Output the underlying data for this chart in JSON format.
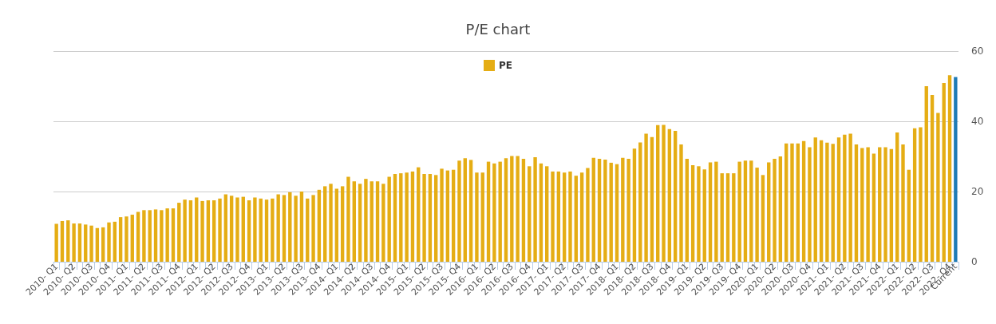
{
  "chart_data": {
    "type": "bar",
    "title": "P/E chart",
    "categories": [
      "2010- Q1",
      null,
      null,
      "2010- Q2",
      null,
      null,
      "2010- Q3",
      null,
      null,
      "2010- Q4",
      null,
      null,
      "2011- Q1",
      null,
      null,
      "2011- Q2",
      null,
      null,
      "2011- Q3",
      null,
      null,
      "2011- Q4",
      null,
      null,
      "2012- Q1",
      null,
      null,
      "2012- Q2",
      null,
      null,
      "2012- Q3",
      null,
      null,
      "2012- Q4",
      null,
      null,
      "2013- Q1",
      null,
      null,
      "2013- Q2",
      null,
      null,
      "2013- Q3",
      null,
      null,
      "2013- Q4",
      null,
      null,
      "2014- Q1",
      null,
      null,
      "2014- Q2",
      null,
      null,
      "2014- Q3",
      null,
      null,
      "2014- Q4",
      null,
      null,
      "2015- Q1",
      null,
      null,
      "2015- Q2",
      null,
      null,
      "2015- Q3",
      null,
      null,
      "2015- Q4",
      null,
      null,
      "2016- Q1",
      null,
      null,
      "2016- Q2",
      null,
      null,
      "2016- Q3",
      null,
      null,
      "2016- Q4",
      null,
      null,
      "2017- Q1",
      null,
      null,
      "2017- Q2",
      null,
      null,
      "2017- Q3",
      null,
      null,
      "2017- Q4",
      null,
      null,
      "2018- Q1",
      null,
      null,
      "2018- Q2",
      null,
      null,
      "2018- Q3",
      null,
      null,
      "2018- Q4",
      null,
      null,
      "2019- Q1",
      null,
      null,
      "2019- Q2",
      null,
      null,
      "2019- Q3",
      null,
      null,
      "2019- Q4",
      null,
      null,
      "2020- Q1",
      null,
      null,
      "2020- Q2",
      null,
      null,
      "2020- Q3",
      null,
      null,
      "2020- Q4",
      null,
      null,
      "2021- Q1",
      null,
      null,
      "2021- Q2",
      null,
      null,
      "2021- Q3",
      null,
      null,
      "2021- Q4",
      null,
      null,
      "2022- Q1",
      null,
      null,
      "2022- Q2",
      null,
      null,
      "2022- Q3",
      null,
      null,
      "2022- Q4",
      "Current"
    ],
    "series": [
      {
        "name": "PE",
        "color": "#e5ad14",
        "values": [
          10.8,
          11.6,
          11.8,
          10.9,
          10.9,
          10.6,
          10.3,
          9.6,
          9.8,
          11.2,
          11.4,
          12.7,
          12.9,
          13.4,
          14.2,
          14.7,
          14.7,
          14.9,
          14.7,
          15.2,
          15.2,
          16.8,
          17.7,
          17.5,
          18.3,
          17.3,
          17.5,
          17.5,
          18.0,
          19.2,
          18.8,
          18.3,
          18.5,
          17.5,
          18.3,
          18.0,
          17.7,
          18.0,
          19.2,
          19.0,
          19.8,
          18.8,
          20.0,
          18.0,
          19.0,
          20.5,
          21.5,
          22.2,
          20.8,
          21.5,
          24.2,
          22.9,
          22.2,
          23.6,
          22.9,
          22.9,
          22.2,
          24.2,
          25.0,
          25.2,
          25.4,
          25.7,
          26.9,
          25.0,
          25.0,
          24.7,
          26.5,
          26.0,
          26.2,
          28.8,
          29.5,
          29.0,
          25.4,
          25.4,
          28.5,
          28.0,
          28.5,
          29.5,
          30.1,
          30.1,
          29.3,
          27.2,
          29.8,
          28.0,
          27.2,
          25.7,
          25.7,
          25.4,
          25.7,
          24.5,
          25.4,
          26.7,
          29.6,
          29.3,
          29.1,
          28.2,
          27.8,
          29.6,
          29.3,
          32.2,
          34.0,
          36.5,
          35.5,
          38.9,
          39.0,
          37.8,
          37.3,
          33.4,
          29.3,
          27.5,
          27.2,
          26.3,
          28.3,
          28.5,
          25.2,
          25.2,
          25.2,
          28.5,
          28.8,
          28.8,
          26.8,
          24.7,
          28.3,
          29.3,
          30.0,
          33.7,
          33.7,
          33.7,
          34.4,
          32.6,
          35.4,
          34.6,
          33.9,
          33.6,
          35.4,
          36.2,
          36.5,
          33.4,
          32.4,
          32.6,
          30.8,
          32.6,
          32.6,
          32.1,
          36.8,
          33.4,
          26.2,
          38.0,
          38.3,
          50.0,
          47.5,
          42.4,
          50.9,
          53.1,
          52.6
        ],
        "colors": [
          "#e5ad14",
          "#e5ad14",
          "#e5ad14",
          "#e5ad14",
          "#e5ad14",
          "#e5ad14",
          "#e5ad14",
          "#e5ad14",
          "#e5ad14",
          "#e5ad14",
          "#e5ad14",
          "#e5ad14",
          "#e5ad14",
          "#e5ad14",
          "#e5ad14",
          "#e5ad14",
          "#e5ad14",
          "#e5ad14",
          "#e5ad14",
          "#e5ad14",
          "#e5ad14",
          "#e5ad14",
          "#e5ad14",
          "#e5ad14",
          "#e5ad14",
          "#e5ad14",
          "#e5ad14",
          "#e5ad14",
          "#e5ad14",
          "#e5ad14",
          "#e5ad14",
          "#e5ad14",
          "#e5ad14",
          "#e5ad14",
          "#e5ad14",
          "#e5ad14",
          "#e5ad14",
          "#e5ad14",
          "#e5ad14",
          "#e5ad14",
          "#e5ad14",
          "#e5ad14",
          "#e5ad14",
          "#e5ad14",
          "#e5ad14",
          "#e5ad14",
          "#e5ad14",
          "#e5ad14",
          "#e5ad14",
          "#e5ad14",
          "#e5ad14",
          "#e5ad14",
          "#e5ad14",
          "#e5ad14",
          "#e5ad14",
          "#e5ad14",
          "#e5ad14",
          "#e5ad14",
          "#e5ad14",
          "#e5ad14",
          "#e5ad14",
          "#e5ad14",
          "#e5ad14",
          "#e5ad14",
          "#e5ad14",
          "#e5ad14",
          "#e5ad14",
          "#e5ad14",
          "#e5ad14",
          "#e5ad14",
          "#e5ad14",
          "#e5ad14",
          "#e5ad14",
          "#e5ad14",
          "#e5ad14",
          "#e5ad14",
          "#e5ad14",
          "#e5ad14",
          "#e5ad14",
          "#e5ad14",
          "#e5ad14",
          "#e5ad14",
          "#e5ad14",
          "#e5ad14",
          "#e5ad14",
          "#e5ad14",
          "#e5ad14",
          "#e5ad14",
          "#e5ad14",
          "#e5ad14",
          "#e5ad14",
          "#e5ad14",
          "#e5ad14",
          "#e5ad14",
          "#e5ad14",
          "#e5ad14",
          "#e5ad14",
          "#e5ad14",
          "#e5ad14",
          "#e5ad14",
          "#e5ad14",
          "#e5ad14",
          "#e5ad14",
          "#e5ad14",
          "#e5ad14",
          "#e5ad14",
          "#e5ad14",
          "#e5ad14",
          "#e5ad14",
          "#e5ad14",
          "#e5ad14",
          "#e5ad14",
          "#e5ad14",
          "#e5ad14",
          "#e5ad14",
          "#e5ad14",
          "#e5ad14",
          "#e5ad14",
          "#e5ad14",
          "#e5ad14",
          "#e5ad14",
          "#e5ad14",
          "#e5ad14",
          "#e5ad14",
          "#e5ad14",
          "#e5ad14",
          "#e5ad14",
          "#e5ad14",
          "#e5ad14",
          "#e5ad14",
          "#e5ad14",
          "#e5ad14",
          "#e5ad14",
          "#e5ad14",
          "#e5ad14",
          "#e5ad14",
          "#e5ad14",
          "#e5ad14",
          "#e5ad14",
          "#e5ad14",
          "#e5ad14",
          "#e5ad14",
          "#e5ad14",
          "#e5ad14",
          "#e5ad14",
          "#e5ad14",
          "#e5ad14",
          "#e5ad14",
          "#e5ad14",
          "#e5ad14",
          "#e5ad14",
          "#e5ad14",
          "#e5ad14",
          "#e5ad14",
          "#1f7bb6"
        ]
      }
    ],
    "ylim": [
      0,
      60
    ],
    "yticks": [
      0,
      20,
      40,
      60
    ],
    "grid": true,
    "legend": "top"
  }
}
